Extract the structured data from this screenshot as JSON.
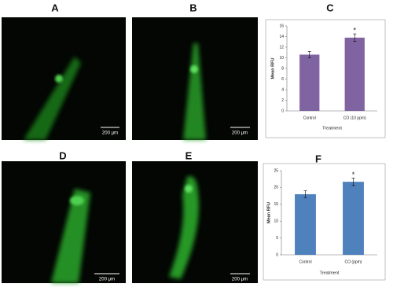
{
  "panels": [
    "A",
    "B",
    "C",
    "D",
    "E",
    "F"
  ],
  "scale_bars": [
    "200 μm",
    "200 μm",
    "200 μm",
    "200 μm"
  ],
  "chart_data": [
    {
      "type": "bar",
      "y_label": "Mean RFU",
      "x_label": "Treatment",
      "categories": [
        "Control",
        "CO (10 ppm)"
      ],
      "values": [
        10.6,
        13.8
      ],
      "errors": [
        0.6,
        0.7
      ],
      "color": "#8064a2",
      "ylim": [
        0,
        16
      ],
      "yticks": [
        0,
        2,
        4,
        6,
        8,
        10,
        12,
        14,
        16
      ],
      "annotations": [
        {
          "text": "*",
          "category": "CO (10 ppm)"
        }
      ]
    },
    {
      "type": "bar",
      "y_label": "Mean RFU",
      "x_label": "Treatment",
      "categories": [
        "Control",
        "CO (ppm)"
      ],
      "values": [
        18,
        21.7
      ],
      "errors": [
        1,
        1.1
      ],
      "color": "#4f81bd",
      "ylim": [
        0,
        25
      ],
      "yticks": [
        0,
        5,
        10,
        15,
        20,
        25
      ],
      "annotations": [
        {
          "text": "*",
          "category": "CO (ppm)"
        }
      ]
    }
  ]
}
